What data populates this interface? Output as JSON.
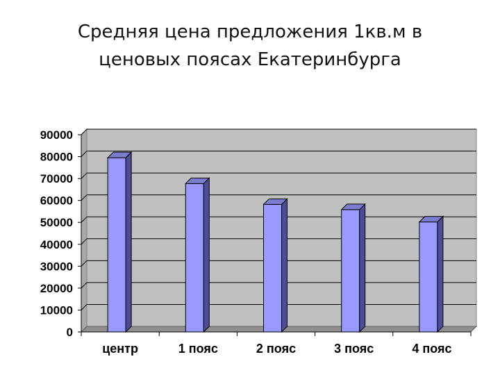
{
  "title_lines": [
    "Средняя цена предложения 1кв.м в",
    "ценовых поясах Екатеринбурга"
  ],
  "chart_data": {
    "type": "bar",
    "title": "Средняя цена предложения 1кв.м в ценовых поясах Екатеринбурга",
    "categories": [
      "центр",
      "1 пояс",
      "2 пояс",
      "3 пояс",
      "4 пояс"
    ],
    "values": [
      79500,
      67700,
      58200,
      55800,
      50200
    ],
    "ylim": [
      0,
      90000
    ],
    "yticks": [
      "0",
      "10000",
      "20000",
      "30000",
      "40000",
      "50000",
      "60000",
      "70000",
      "80000",
      "90000"
    ],
    "grid": true,
    "three_d": true,
    "colors": {
      "bar_front": "#9999ff",
      "bar_side": "#4c4c99",
      "bar_top": "#7c7ccc",
      "plot_back": "#c0c0c0",
      "floor": "#8f8f8f"
    }
  }
}
